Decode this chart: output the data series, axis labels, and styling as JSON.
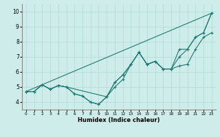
{
  "xlabel": "Humidex (Indice chaleur)",
  "xlim": [
    -0.5,
    23.5
  ],
  "ylim": [
    3.5,
    10.5
  ],
  "yticks": [
    4,
    5,
    6,
    7,
    8,
    9,
    10
  ],
  "xticks": [
    0,
    1,
    2,
    3,
    4,
    5,
    6,
    7,
    8,
    9,
    10,
    11,
    12,
    13,
    14,
    15,
    16,
    17,
    18,
    19,
    20,
    21,
    22,
    23
  ],
  "bg_color": "#cdecea",
  "grid_color": "#aed8d4",
  "line_color": "#1a7a6e",
  "line1_x": [
    0,
    1,
    2,
    3,
    4,
    5,
    6,
    7,
    8,
    9,
    10,
    11,
    12,
    13,
    14,
    15,
    16,
    17,
    18,
    19,
    20,
    21,
    22,
    23
  ],
  "line1_y": [
    4.7,
    4.7,
    5.15,
    4.85,
    5.1,
    5.0,
    4.55,
    4.4,
    4.0,
    3.85,
    4.35,
    5.0,
    5.5,
    6.5,
    7.3,
    6.5,
    6.7,
    6.2,
    6.2,
    6.4,
    6.5,
    7.5,
    8.3,
    8.6
  ],
  "line2_x": [
    0,
    1,
    2,
    3,
    4,
    5,
    6,
    7,
    8,
    9,
    10,
    11,
    12,
    13,
    14,
    15,
    16,
    17,
    18,
    19,
    20,
    21,
    22,
    23
  ],
  "line2_y": [
    4.7,
    4.7,
    5.15,
    4.85,
    5.1,
    5.0,
    4.55,
    4.4,
    4.0,
    3.85,
    4.35,
    5.3,
    5.8,
    6.5,
    7.3,
    6.5,
    6.7,
    6.2,
    6.2,
    7.0,
    7.5,
    8.3,
    8.6,
    9.9
  ],
  "line3_x": [
    0,
    23
  ],
  "line3_y": [
    4.7,
    9.9
  ],
  "line4_x": [
    0,
    1,
    2,
    3,
    4,
    5,
    10,
    11,
    12,
    13,
    14,
    15,
    16,
    17,
    18,
    19,
    20,
    21,
    22,
    23
  ],
  "line4_y": [
    4.7,
    4.7,
    5.15,
    4.85,
    5.1,
    5.0,
    4.35,
    5.3,
    5.8,
    6.5,
    7.3,
    6.5,
    6.7,
    6.2,
    6.2,
    7.5,
    7.5,
    8.3,
    8.6,
    9.9
  ]
}
